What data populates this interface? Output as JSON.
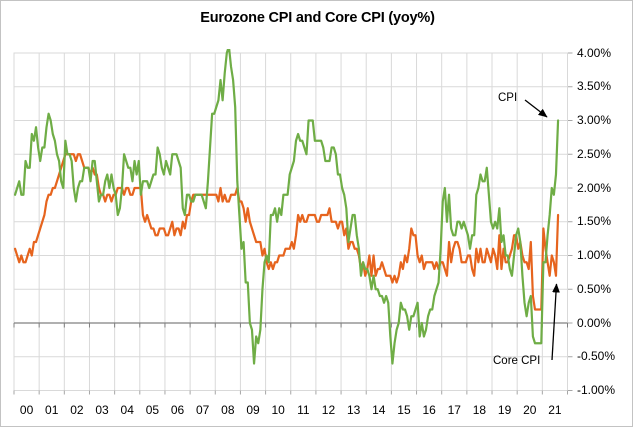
{
  "chart_data": {
    "type": "line",
    "title": "Eurozone CPI and Core CPI (yoy%)",
    "frequency": "monthly",
    "x_start": "2000-01",
    "x_end": "2021-08",
    "x_tick_labels": [
      "00",
      "01",
      "02",
      "03",
      "04",
      "05",
      "06",
      "07",
      "08",
      "09",
      "10",
      "11",
      "12",
      "13",
      "14",
      "15",
      "16",
      "17",
      "18",
      "19",
      "20",
      "21"
    ],
    "y_tick_labels": [
      {
        "value": 4.0,
        "label": "4.00%"
      },
      {
        "value": 3.5,
        "label": "3.50%"
      },
      {
        "value": 3.0,
        "label": "3.00%"
      },
      {
        "value": 2.5,
        "label": "2.50%"
      },
      {
        "value": 2.0,
        "label": "2.00%"
      },
      {
        "value": 1.5,
        "label": "1.50%"
      },
      {
        "value": 1.0,
        "label": "1.00%"
      },
      {
        "value": 0.5,
        "label": "0.50%"
      },
      {
        "value": 0.0,
        "label": "0.00%"
      },
      {
        "value": -0.5,
        "label": "-0.50%"
      },
      {
        "value": -1.0,
        "label": "-1.00%"
      }
    ],
    "ylim": [
      -1.0,
      4.0
    ],
    "grid": true,
    "legend_position": "none",
    "series": [
      {
        "name": "CPI",
        "color": "#6fad46",
        "values": [
          1.9,
          2.0,
          2.1,
          1.9,
          1.9,
          2.4,
          2.3,
          2.3,
          2.8,
          2.7,
          2.9,
          2.6,
          2.4,
          2.6,
          2.6,
          2.9,
          3.1,
          3.0,
          2.8,
          2.7,
          2.5,
          2.4,
          2.1,
          2.0,
          2.7,
          2.5,
          2.5,
          2.4,
          2.0,
          1.8,
          2.0,
          2.1,
          2.1,
          2.3,
          2.3,
          2.3,
          2.1,
          2.4,
          2.4,
          2.1,
          1.8,
          1.9,
          1.9,
          2.1,
          2.2,
          2.0,
          2.2,
          2.0,
          1.9,
          1.6,
          1.7,
          2.0,
          2.5,
          2.4,
          2.3,
          2.3,
          2.1,
          2.4,
          2.2,
          2.4,
          1.9,
          2.1,
          2.1,
          2.1,
          2.0,
          2.1,
          2.2,
          2.2,
          2.6,
          2.5,
          2.3,
          2.2,
          2.4,
          2.3,
          2.2,
          2.5,
          2.5,
          2.5,
          2.4,
          2.3,
          1.7,
          1.6,
          1.9,
          1.9,
          1.8,
          1.8,
          1.9,
          1.9,
          1.9,
          1.9,
          1.8,
          1.7,
          2.1,
          2.6,
          3.1,
          3.1,
          3.2,
          3.3,
          3.6,
          3.3,
          3.7,
          4.0,
          4.1,
          3.8,
          3.6,
          3.2,
          2.1,
          1.6,
          1.1,
          1.2,
          0.6,
          0.6,
          0.0,
          -0.1,
          -0.6,
          -0.2,
          -0.3,
          -0.1,
          0.5,
          0.9,
          1.0,
          0.9,
          1.6,
          1.6,
          1.7,
          1.5,
          1.7,
          1.6,
          1.9,
          1.9,
          1.9,
          2.2,
          2.3,
          2.4,
          2.7,
          2.8,
          2.7,
          2.7,
          2.6,
          2.5,
          3.0,
          3.0,
          3.0,
          2.7,
          2.7,
          2.7,
          2.7,
          2.6,
          2.4,
          2.4,
          2.4,
          2.6,
          2.6,
          2.5,
          2.2,
          2.2,
          2.0,
          1.9,
          1.7,
          1.2,
          1.4,
          1.6,
          1.6,
          1.3,
          1.1,
          0.7,
          0.9,
          0.8,
          0.8,
          0.7,
          0.5,
          0.7,
          0.5,
          0.5,
          0.4,
          0.4,
          0.3,
          0.4,
          0.3,
          -0.2,
          -0.6,
          -0.3,
          -0.1,
          0.0,
          0.3,
          0.2,
          0.2,
          0.1,
          -0.1,
          0.1,
          0.1,
          0.2,
          0.3,
          -0.2,
          0.0,
          -0.2,
          -0.1,
          0.1,
          0.2,
          0.2,
          0.4,
          0.5,
          0.6,
          1.1,
          1.8,
          2.0,
          1.5,
          1.9,
          1.4,
          1.3,
          1.3,
          1.5,
          1.5,
          1.4,
          1.5,
          1.4,
          1.3,
          1.1,
          1.3,
          1.3,
          1.9,
          2.0,
          2.2,
          2.1,
          2.1,
          2.3,
          1.9,
          1.5,
          1.4,
          1.5,
          1.4,
          1.7,
          1.2,
          1.3,
          1.0,
          1.0,
          0.8,
          0.7,
          1.0,
          1.3,
          1.4,
          1.2,
          0.7,
          0.3,
          0.1,
          0.3,
          0.4,
          -0.2,
          -0.3,
          -0.3,
          -0.3,
          -0.3,
          0.9,
          0.9,
          1.3,
          1.6,
          2.0,
          1.9,
          2.2,
          3.0
        ]
      },
      {
        "name": "Core CPI",
        "color": "#e6641e",
        "values": [
          1.1,
          1.0,
          0.9,
          1.0,
          0.9,
          0.9,
          1.0,
          1.1,
          1.0,
          1.2,
          1.2,
          1.3,
          1.4,
          1.5,
          1.6,
          1.8,
          1.9,
          1.9,
          2.0,
          2.0,
          2.1,
          2.2,
          2.3,
          2.4,
          2.5,
          2.5,
          2.5,
          2.5,
          2.5,
          2.4,
          2.5,
          2.5,
          2.4,
          2.3,
          2.3,
          2.3,
          2.2,
          2.3,
          2.2,
          2.2,
          2.0,
          1.9,
          1.9,
          1.8,
          1.9,
          1.9,
          1.8,
          1.9,
          1.9,
          2.0,
          2.0,
          2.0,
          1.9,
          2.0,
          2.0,
          1.9,
          1.9,
          2.0,
          2.0,
          2.0,
          2.0,
          1.6,
          1.5,
          1.6,
          1.5,
          1.4,
          1.4,
          1.3,
          1.3,
          1.4,
          1.4,
          1.4,
          1.3,
          1.3,
          1.4,
          1.5,
          1.3,
          1.4,
          1.4,
          1.3,
          1.5,
          1.4,
          1.6,
          1.6,
          1.8,
          1.9,
          1.9,
          1.9,
          1.9,
          1.9,
          1.9,
          1.9,
          1.9,
          1.9,
          1.9,
          1.9,
          1.9,
          1.8,
          2.0,
          1.8,
          1.9,
          1.8,
          1.8,
          1.9,
          1.9,
          1.9,
          2.0,
          1.8,
          1.8,
          1.7,
          1.5,
          1.7,
          1.5,
          1.4,
          1.3,
          1.2,
          1.2,
          1.2,
          1.0,
          1.1,
          0.9,
          0.8,
          0.9,
          0.8,
          0.9,
          0.9,
          1.0,
          1.0,
          1.0,
          1.1,
          1.1,
          1.1,
          1.2,
          1.1,
          1.3,
          1.6,
          1.5,
          1.6,
          1.5,
          1.5,
          1.6,
          1.6,
          1.6,
          1.6,
          1.5,
          1.5,
          1.6,
          1.6,
          1.6,
          1.6,
          1.7,
          1.5,
          1.5,
          1.5,
          1.4,
          1.5,
          1.5,
          1.3,
          1.4,
          1.1,
          1.2,
          1.2,
          1.1,
          1.1,
          1.0,
          0.8,
          0.9,
          0.7,
          0.8,
          1.0,
          0.7,
          1.0,
          0.7,
          0.8,
          0.8,
          0.9,
          0.8,
          0.7,
          0.7,
          0.7,
          0.6,
          0.7,
          0.6,
          0.7,
          0.9,
          0.8,
          1.0,
          0.9,
          1.1,
          1.4,
          1.3,
          1.3,
          1.0,
          0.9,
          1.0,
          0.8,
          0.9,
          0.9,
          0.9,
          0.9,
          0.8,
          0.9,
          0.8,
          0.9,
          0.9,
          0.8,
          0.7,
          1.2,
          0.9,
          1.1,
          1.2,
          1.2,
          1.1,
          0.9,
          0.9,
          0.9,
          1.0,
          1.0,
          0.8,
          0.7,
          1.1,
          0.9,
          1.1,
          0.9,
          0.9,
          1.1,
          1.0,
          0.9,
          1.1,
          1.0,
          0.8,
          1.3,
          0.8,
          1.1,
          0.9,
          0.9,
          1.0,
          1.1,
          1.3,
          1.3,
          1.1,
          1.2,
          1.0,
          0.9,
          0.9,
          0.8,
          1.2,
          0.4,
          0.2,
          0.2,
          0.2,
          0.2,
          1.4,
          1.1,
          0.9,
          0.7,
          1.0,
          0.9,
          0.7,
          1.6
        ]
      }
    ],
    "annotations": [
      {
        "label": "CPI",
        "points_to": "CPI"
      },
      {
        "label": "Core CPI",
        "points_to": "Core CPI"
      }
    ]
  },
  "colors": {
    "grid": "#d9d9d9",
    "plot_border": "#d9d9d9",
    "zero_axis": "#808080",
    "tick": "#a6a6a6",
    "text": "#000000",
    "chart_border": "#c3c3c3",
    "background": "#ffffff"
  }
}
